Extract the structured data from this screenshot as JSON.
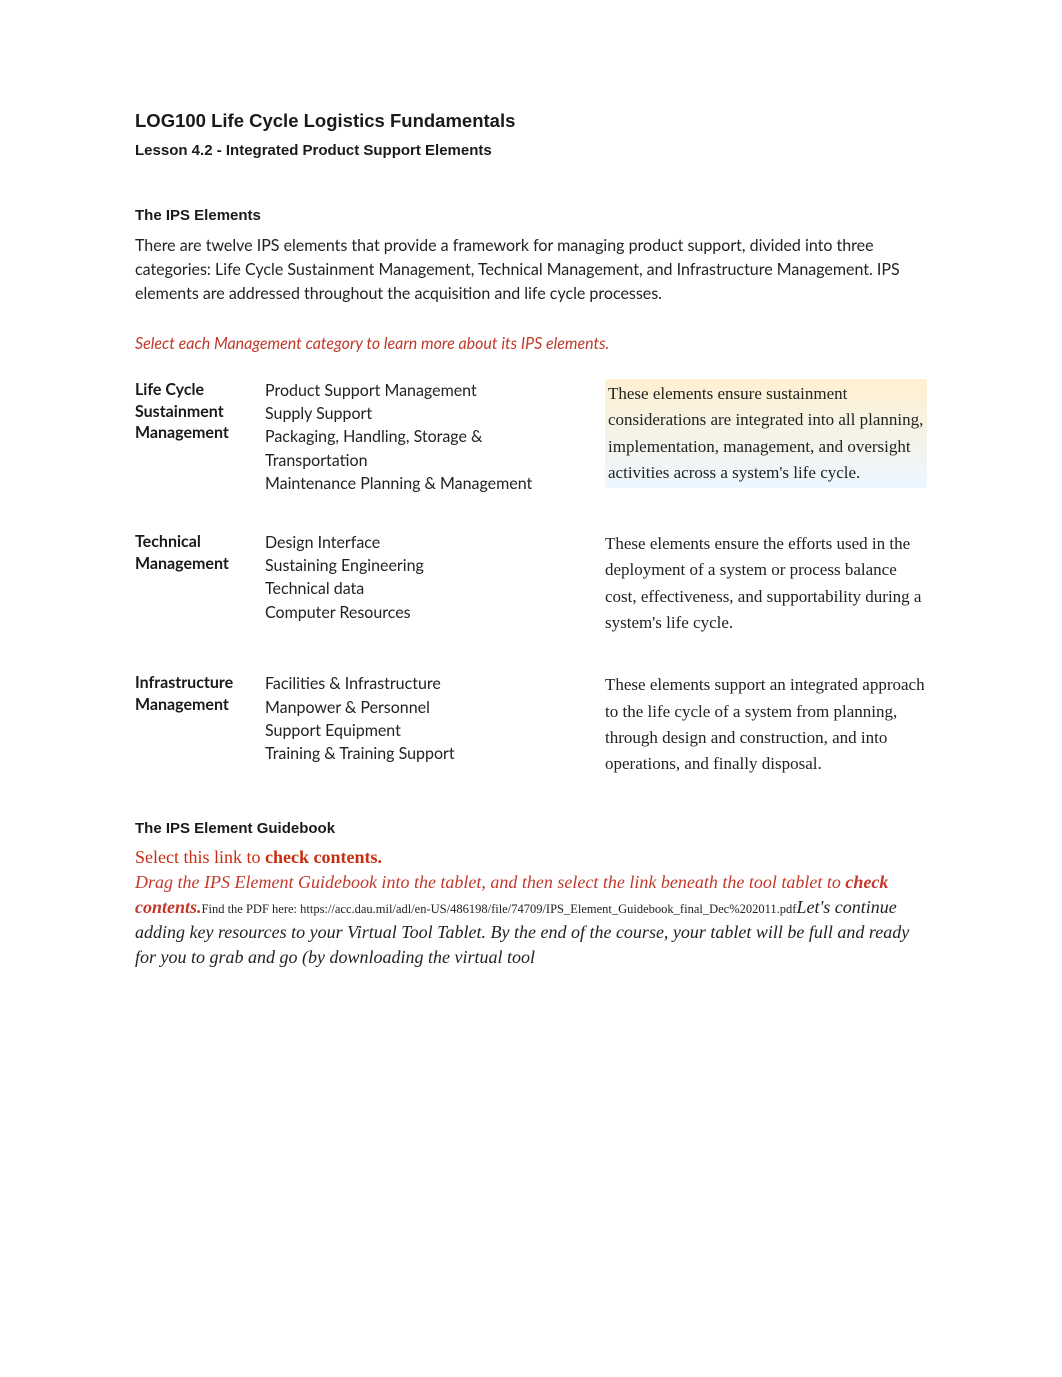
{
  "course_title": "LOG100 Life Cycle Logistics Fundamentals",
  "lesson_title": "Lesson 4.2 - Integrated Product Support Elements",
  "section1": {
    "heading": "The IPS Elements",
    "intro": "There are twelve IPS elements that provide a framework for managing product support, divided into three categories: Life Cycle Sustainment Management, Technical Management, and Infrastructure Management. IPS elements are addressed throughout the acquisition and life cycle processes.",
    "instruction": "Select each Management category to learn more about its IPS elements."
  },
  "categories": [
    {
      "name": "Life Cycle Sustainment Management",
      "items": [
        "Product Support Management",
        "Supply Support",
        "Packaging, Handling, Storage & Transportation",
        "Maintenance Planning & Management"
      ],
      "description": "These elements ensure sustainment considerations are integrated into all planning, implementation, management, and oversight activities across a system's life cycle.",
      "highlighted": true
    },
    {
      "name": "Technical Management",
      "items": [
        "Design Interface",
        "Sustaining Engineering",
        "Technical data",
        "Computer Resources"
      ],
      "description": "These elements ensure the efforts used in the deployment of a system or process balance cost, effectiveness, and supportability during a system's life cycle.",
      "highlighted": false
    },
    {
      "name": "Infrastructure Management",
      "items": [
        "Facilities & Infrastructure",
        "Manpower & Personnel",
        "Support Equipment",
        "Training & Training Support"
      ],
      "description": "These elements support an integrated approach to the life cycle of a system from planning, through design and construction, and into operations, and finally disposal.",
      "highlighted": false
    }
  ],
  "section2": {
    "heading": "The IPS Element Guidebook",
    "link_prefix": "Select this link to ",
    "link_bold": "check contents.",
    "drag_text": "Drag the IPS Element Guidebook into the tablet, and then select the link beneath the tool tablet to ",
    "drag_bold": "check contents.",
    "pdf_prefix": "Find the PDF here: ",
    "pdf_url": "https://acc.dau.mil/adl/en-US/486198/file/74709/IPS_Element_Guidebook_final_Dec%202011.pdf",
    "continue_text": "Let's continue adding key resources to your Virtual Tool Tablet. By the end of the course, your tablet will be full and ready for you to grab and go (by downloading the virtual tool"
  },
  "colors": {
    "accent_red": "#c0392b",
    "link_red": "#c62f12",
    "text": "#222222",
    "background": "#ffffff"
  }
}
